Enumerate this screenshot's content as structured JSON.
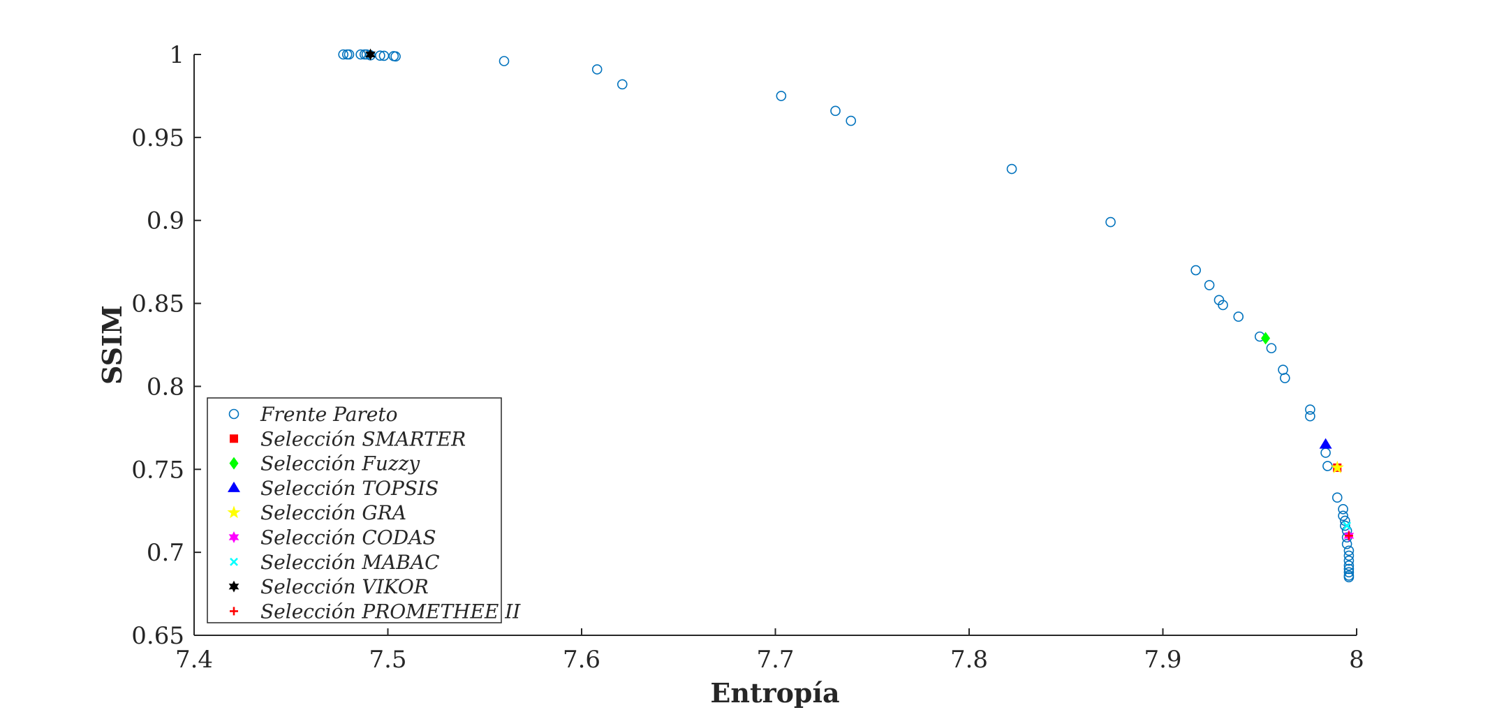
{
  "chart_data": {
    "type": "scatter",
    "xlabel": "Entropía",
    "ylabel": "SSIM",
    "xlim": [
      7.4,
      8.0
    ],
    "ylim": [
      0.65,
      1.0
    ],
    "xticks": [
      "7.4",
      "7.5",
      "7.6",
      "7.7",
      "7.8",
      "7.9",
      "8"
    ],
    "yticks": [
      "0.65",
      "0.7",
      "0.75",
      "0.8",
      "0.85",
      "0.9",
      "0.95",
      "1"
    ],
    "grid": false,
    "legend_position": "bottom-left",
    "series": [
      {
        "name": "Frente Pareto",
        "marker": "circle-open",
        "color": "#0072BD",
        "points": [
          [
            7.477,
            1.0
          ],
          [
            7.479,
            1.0
          ],
          [
            7.48,
            1.0
          ],
          [
            7.486,
            1.0
          ],
          [
            7.488,
            1.0
          ],
          [
            7.489,
            1.0
          ],
          [
            7.491,
            0.9995
          ],
          [
            7.496,
            0.9993
          ],
          [
            7.498,
            0.9992
          ],
          [
            7.503,
            0.999
          ],
          [
            7.504,
            0.9988
          ],
          [
            7.56,
            0.996
          ],
          [
            7.608,
            0.991
          ],
          [
            7.621,
            0.982
          ],
          [
            7.703,
            0.975
          ],
          [
            7.731,
            0.966
          ],
          [
            7.739,
            0.96
          ],
          [
            7.822,
            0.931
          ],
          [
            7.873,
            0.899
          ],
          [
            7.917,
            0.87
          ],
          [
            7.924,
            0.861
          ],
          [
            7.929,
            0.852
          ],
          [
            7.931,
            0.849
          ],
          [
            7.939,
            0.842
          ],
          [
            7.95,
            0.83
          ],
          [
            7.956,
            0.823
          ],
          [
            7.962,
            0.81
          ],
          [
            7.963,
            0.805
          ],
          [
            7.976,
            0.786
          ],
          [
            7.976,
            0.782
          ],
          [
            7.984,
            0.76
          ],
          [
            7.985,
            0.752
          ],
          [
            7.99,
            0.733
          ],
          [
            7.993,
            0.726
          ],
          [
            7.993,
            0.722
          ],
          [
            7.994,
            0.719
          ],
          [
            7.994,
            0.716
          ],
          [
            7.995,
            0.713
          ],
          [
            7.995,
            0.709
          ],
          [
            7.995,
            0.705
          ],
          [
            7.996,
            0.701
          ],
          [
            7.996,
            0.698
          ],
          [
            7.996,
            0.695
          ],
          [
            7.996,
            0.692
          ],
          [
            7.996,
            0.69
          ],
          [
            7.996,
            0.688
          ],
          [
            7.996,
            0.686
          ],
          [
            7.996,
            0.685
          ]
        ]
      },
      {
        "name": "Selección SMARTER",
        "marker": "square",
        "color": "#ff0000",
        "points": [
          [
            7.99,
            0.751
          ]
        ]
      },
      {
        "name": "Selección Fuzzy",
        "marker": "diamond",
        "color": "#00ff00",
        "points": [
          [
            7.953,
            0.829
          ]
        ]
      },
      {
        "name": "Selección TOPSIS",
        "marker": "triangle",
        "color": "#0000ff",
        "points": [
          [
            7.984,
            0.765
          ]
        ]
      },
      {
        "name": "Selección GRA",
        "marker": "star5",
        "color": "#ffff00",
        "points": [
          [
            7.99,
            0.751
          ]
        ]
      },
      {
        "name": "Selección CODAS",
        "marker": "star6",
        "color": "#ff00ff",
        "points": [
          [
            7.996,
            0.71
          ]
        ]
      },
      {
        "name": "Selección MABAC",
        "marker": "x",
        "color": "#00ffff",
        "points": [
          [
            7.995,
            0.716
          ]
        ]
      },
      {
        "name": "Selección VIKOR",
        "marker": "star6",
        "color": "#000000",
        "points": [
          [
            7.491,
            1.0
          ]
        ]
      },
      {
        "name": "Selección PROMETHEE II",
        "marker": "plus",
        "color": "#ff0000",
        "points": [
          [
            7.996,
            0.71
          ]
        ]
      }
    ]
  }
}
